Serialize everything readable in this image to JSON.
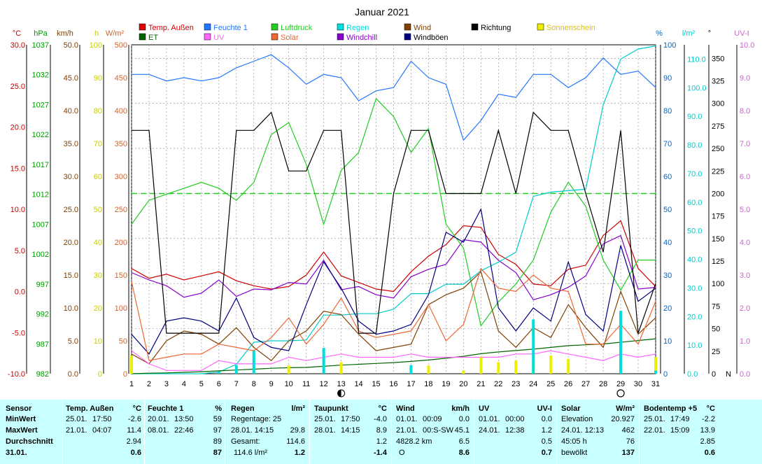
{
  "chart_data": {
    "type": "line",
    "title": "Januar 2021",
    "x": [
      1,
      2,
      3,
      4,
      5,
      6,
      7,
      8,
      9,
      10,
      11,
      12,
      13,
      14,
      15,
      16,
      17,
      18,
      19,
      20,
      21,
      22,
      23,
      24,
      25,
      26,
      27,
      28,
      29,
      30,
      31
    ],
    "x_ticks": [
      "1",
      "2",
      "3",
      "4",
      "5",
      "6",
      "7",
      "8",
      "9",
      "10",
      "11",
      "12",
      "13",
      "14",
      "15",
      "16",
      "17",
      "18",
      "19",
      "20",
      "21",
      "22",
      "23",
      "24",
      "25",
      "26",
      "27",
      "28",
      "29",
      "30",
      "31"
    ],
    "axes": [
      {
        "id": "temp",
        "label": "°C",
        "color": "#cc0000",
        "min": -10,
        "max": 30,
        "ticks": [
          "30.0",
          "25.0",
          "20.0",
          "15.0",
          "10.0",
          "5.0",
          "0.0",
          "-5.0",
          "-10.0"
        ]
      },
      {
        "id": "hpa",
        "label": "hPa",
        "color": "#009900",
        "min": 982,
        "max": 1037,
        "ticks": [
          "1037",
          "1032",
          "1027",
          "1022",
          "1017",
          "1012",
          "1007",
          "1002",
          "997",
          "992",
          "987",
          "982"
        ]
      },
      {
        "id": "kmh",
        "label": "km/h",
        "color": "#804000",
        "min": 0,
        "max": 50,
        "ticks": [
          "50.0",
          "45.0",
          "40.0",
          "35.0",
          "30.0",
          "25.0",
          "20.0",
          "15.0",
          "10.0",
          "5.0",
          "0.0"
        ]
      },
      {
        "id": "h",
        "label": "h",
        "color": "#cccc00",
        "min": 0,
        "max": 100,
        "ticks": [
          "100",
          "90",
          "80",
          "70",
          "60",
          "50",
          "40",
          "30",
          "20",
          "10",
          "0"
        ]
      },
      {
        "id": "wm2",
        "label": "W/m²",
        "color": "#cc6633",
        "min": 0,
        "max": 500,
        "ticks": [
          "500",
          "450",
          "400",
          "350",
          "300",
          "250",
          "200",
          "150",
          "100",
          "50",
          "0"
        ]
      },
      {
        "id": "pct",
        "label": "%",
        "color": "#0066cc",
        "min": 0,
        "max": 100,
        "ticks": [
          "100",
          "90",
          "80",
          "70",
          "60",
          "50",
          "40",
          "30",
          "20",
          "10",
          "0"
        ]
      },
      {
        "id": "lm2",
        "label": "l/m²",
        "color": "#00cccc",
        "min": 0,
        "max": 115,
        "ticks": [
          "110.0",
          "100.0",
          "90.0",
          "80.0",
          "70.0",
          "60.0",
          "50.0",
          "40.0",
          "30.0",
          "20.0",
          "10.0",
          "0.0"
        ]
      },
      {
        "id": "deg",
        "label": "°",
        "color": "#000000",
        "min": 0,
        "max": 365,
        "ticks": [
          "350",
          "325",
          "300",
          "275",
          "250",
          "225",
          "200",
          "175",
          "150",
          "125",
          "100",
          "75",
          "50",
          "25",
          "0"
        ],
        "zero_suffix": "N"
      },
      {
        "id": "uvi",
        "label": "UV-I",
        "color": "#cc66cc",
        "min": 0,
        "max": 10,
        "ticks": [
          "10.0",
          "9.0",
          "8.0",
          "7.0",
          "6.0",
          "5.0",
          "4.0",
          "3.0",
          "2.0",
          "1.0",
          "0.0"
        ]
      }
    ],
    "legend": [
      {
        "name": "Temp. Außen",
        "color": "#dd0000"
      },
      {
        "name": "Feuchte 1",
        "color": "#2277ff"
      },
      {
        "name": "Luftdruck",
        "color": "#22cc22"
      },
      {
        "name": "Regen",
        "color": "#00dddd"
      },
      {
        "name": "Wind",
        "color": "#804000"
      },
      {
        "name": "Richtung",
        "color": "#000000"
      },
      {
        "name": "Sonnenschein",
        "color": "#eeee00"
      },
      {
        "name": "ET",
        "color": "#006600"
      },
      {
        "name": "UV",
        "color": "#ff66ff"
      },
      {
        "name": "Solar",
        "color": "#ee6633"
      },
      {
        "name": "Windchill",
        "color": "#8800cc"
      },
      {
        "name": "Windböen",
        "color": "#000080"
      }
    ],
    "series": [
      {
        "name": "Temp. Außen",
        "axis": "temp",
        "color": "#cc0000",
        "values": [
          2.8,
          1.6,
          2.1,
          1.4,
          1.9,
          2.4,
          1.3,
          0.7,
          0.3,
          0.6,
          2.0,
          4.8,
          1.9,
          1.1,
          0.3,
          0.0,
          2.4,
          4.3,
          5.7,
          8.0,
          7.8,
          4.5,
          3.3,
          0.9,
          0.7,
          2.7,
          3.2,
          6.8,
          8.6,
          2.8,
          0.6
        ]
      },
      {
        "name": "Windchill",
        "axis": "temp",
        "color": "#8800cc",
        "values": [
          2.3,
          1.4,
          0.7,
          -0.7,
          -0.2,
          1.4,
          -0.6,
          0.3,
          0.2,
          1.1,
          0.9,
          3.8,
          0.2,
          0.6,
          -0.4,
          -0.8,
          1.8,
          2.7,
          3.3,
          6.3,
          6.0,
          3.8,
          2.3,
          -1.0,
          -0.4,
          0.5,
          1.9,
          5.8,
          6.8,
          0.3,
          0.5
        ]
      },
      {
        "name": "Feuchte 1",
        "axis": "pct",
        "color": "#2277ff",
        "values": [
          91,
          91,
          89,
          90,
          89,
          90,
          93,
          95,
          97,
          93,
          88,
          91,
          90,
          83,
          86,
          87,
          95,
          90,
          88,
          71,
          77,
          85,
          84,
          91,
          91,
          87,
          90,
          96,
          91,
          92,
          87
        ]
      },
      {
        "name": "Luftdruck",
        "axis": "hpa",
        "color": "#22cc22",
        "values": [
          1007,
          1011,
          1012,
          1013,
          1014,
          1013,
          1011,
          1014,
          1022,
          1024,
          1017,
          1007,
          1016,
          1019,
          1028,
          1025,
          1019,
          1023,
          1007,
          1003,
          990,
          994,
          997,
          1001,
          1009,
          1014,
          1010,
          1001,
          996,
          1001,
          1001
        ]
      },
      {
        "name": "Regen",
        "axis": "lm2",
        "color": "#00cccc",
        "values": [
          0.0,
          0.0,
          0.0,
          0.0,
          0.0,
          0.6,
          3.3,
          11.0,
          11.5,
          11.5,
          11.8,
          20.5,
          20.5,
          21.0,
          21.0,
          22.5,
          28.0,
          28.0,
          31.3,
          31.3,
          36.0,
          39.0,
          42.5,
          62.0,
          63.5,
          64.0,
          64.5,
          94.0,
          110.0,
          113.5,
          114.6
        ]
      },
      {
        "name": "ET",
        "axis": "lm2",
        "color": "#006600",
        "values": [
          0.0,
          0.2,
          0.3,
          0.5,
          0.7,
          1.0,
          1.3,
          1.6,
          1.9,
          2.1,
          2.2,
          2.6,
          3.0,
          3.3,
          3.6,
          3.9,
          4.3,
          4.8,
          5.4,
          6.1,
          7.0,
          7.6,
          8.1,
          8.6,
          9.2,
          9.8,
          10.1,
          10.4,
          11.0,
          11.6,
          12.2
        ]
      },
      {
        "name": "Wind",
        "axis": "kmh",
        "color": "#804000",
        "values": [
          3.0,
          1.5,
          5.0,
          6.5,
          6.0,
          4.5,
          7.0,
          4.0,
          2.0,
          5.0,
          6.5,
          9.5,
          9.0,
          6.0,
          3.5,
          4.0,
          4.5,
          10.5,
          12.0,
          13.0,
          15.5,
          6.5,
          4.0,
          7.0,
          5.5,
          10.5,
          7.0,
          4.0,
          12.5,
          6.0,
          8.5
        ]
      },
      {
        "name": "Windböen",
        "axis": "kmh",
        "color": "#000080",
        "values": [
          6.0,
          3.0,
          8.0,
          8.5,
          8.0,
          6.5,
          11.5,
          5.5,
          4.0,
          3.5,
          10.5,
          17.0,
          13.0,
          8.0,
          6.0,
          6.5,
          7.5,
          12.0,
          21.5,
          20.0,
          25.0,
          10.0,
          6.5,
          10.0,
          8.0,
          17.0,
          9.0,
          6.5,
          19.5,
          11.0,
          13.0
        ]
      },
      {
        "name": "Solar",
        "axis": "wm2",
        "color": "#ee6633",
        "values": [
          140,
          20,
          25,
          30,
          30,
          45,
          40,
          35,
          55,
          85,
          45,
          75,
          115,
          65,
          55,
          60,
          65,
          105,
          50,
          75,
          160,
          130,
          125,
          150,
          130,
          125,
          45,
          45,
          75,
          45,
          110
        ]
      },
      {
        "name": "Richtung",
        "axis": "deg",
        "color": "#000000",
        "values": [
          270,
          270,
          45,
          45,
          45,
          45,
          270,
          270,
          290,
          225,
          225,
          270,
          270,
          45,
          45,
          200,
          270,
          270,
          200,
          200,
          200,
          270,
          200,
          290,
          270,
          270,
          200,
          135,
          270,
          45,
          100
        ]
      },
      {
        "name": "UV",
        "axis": "uvi",
        "color": "#ff66ff",
        "values": [
          0.7,
          0.3,
          0.1,
          0.1,
          0.1,
          0.4,
          0.3,
          0.3,
          0.3,
          0.5,
          0.4,
          0.5,
          0.6,
          0.5,
          0.5,
          0.5,
          0.6,
          0.5,
          0.5,
          0.5,
          0.5,
          0.5,
          0.6,
          0.6,
          0.7,
          0.6,
          0.5,
          0.4,
          0.6,
          0.5,
          0.6
        ]
      },
      {
        "name": "Sonnenschein",
        "axis": "h",
        "color": "#eeee00",
        "type": "bar",
        "values": [
          5.5,
          0,
          0,
          0,
          0,
          0,
          0,
          0,
          0,
          2.5,
          0,
          0,
          3.5,
          0,
          0,
          0,
          2.5,
          2.5,
          0,
          1.0,
          5.0,
          3.5,
          4.0,
          3.5,
          5.5,
          4.5,
          0,
          0,
          1.0,
          0,
          5.0
        ]
      },
      {
        "name": "Regen",
        "axis": "lm2",
        "color": "#00dddd",
        "type": "bar",
        "values": [
          0,
          0,
          0,
          0,
          0,
          0.5,
          3,
          8,
          0,
          0,
          0,
          9,
          0,
          0,
          0,
          0,
          3,
          0,
          0,
          0,
          0,
          0,
          0,
          19,
          0,
          0,
          0,
          0,
          22,
          0,
          1.1
        ]
      }
    ],
    "reference_line": {
      "axis": "deg",
      "value": 200,
      "color": "#22cc22",
      "style": "dashed"
    },
    "moon_markers": [
      {
        "day": 13,
        "type": "new"
      },
      {
        "day": 29,
        "type": "full"
      }
    ]
  },
  "stats": {
    "sensor": {
      "header": "Sensor",
      "min": "MinWert",
      "max": "MaxWert",
      "avg": "Durchschnitt",
      "date": "31.01."
    },
    "temp": {
      "title": "Temp. Außen",
      "unit": "°C",
      "min_date": "25.01.",
      "min_time": "17:50",
      "min_val": "-2.6",
      "max_date": "21.01.",
      "max_time": "04:07",
      "max_val": "11.4",
      "avg": "2.94",
      "today": "0.6"
    },
    "feuchte": {
      "title": "Feuchte 1",
      "unit": "%",
      "min_date": "20.01.",
      "min_time": "13:50",
      "min_val": "59",
      "max_date": "08.01.",
      "max_time": "22:46",
      "max_val": "97",
      "avg": "89",
      "today": "87"
    },
    "regen": {
      "title": "Regen",
      "unit": "l/m²",
      "r1_label": "Regentage: 25",
      "r2_label": "28.01.  14:15",
      "r2_val": "29.8",
      "r3_label": "Gesamt:",
      "r3_val": "114.6",
      "today_label": "114.6 l/m²",
      "today": "1.2"
    },
    "taupunkt": {
      "title": "Taupunkt",
      "unit": "°C",
      "min_date": "25.01.",
      "min_time": "17:50",
      "min_val": "-4.0",
      "max_date": "28.01.",
      "max_time": "14:15",
      "max_val": "8.9",
      "avg": "1.2",
      "today": "-1.4"
    },
    "wind": {
      "title": "Wind",
      "unit": "km/h",
      "min_date": "01.01.",
      "min_time": "00:09",
      "min_val": "0.0",
      "max_date": "21.01.",
      "max_time": "00:S-SW",
      "max_val": "45.1",
      "avg_label": "4828.2 km",
      "avg": "6.5",
      "today_label": "O",
      "today": "8.6"
    },
    "uv": {
      "title": "UV",
      "unit": "UV-I",
      "min_date": "01.01.",
      "min_time": "00:00",
      "min_val": "0.0",
      "max_date": "24.01.",
      "max_time": "12:38",
      "max_val": "1.2",
      "avg": "0.5",
      "today": "0.7"
    },
    "solar": {
      "title": "Solar",
      "unit": "W/m²",
      "r1_label": "Elevation",
      "r1_val": "20.927",
      "r2_label": "24.01.  12:13",
      "r2_val": "462",
      "r3_label": "45:05 h",
      "r3_val": "76",
      "today_label": "bewölkt",
      "today": "137"
    },
    "boden": {
      "title": "Bodentemp +5",
      "unit": "°C",
      "min_date": "25.01.",
      "min_time": "17:49",
      "min_val": "-2.2",
      "max_date": "22.01.",
      "max_time": "15:09",
      "max_val": "13.9",
      "avg": "2.85",
      "today": "0.6"
    }
  }
}
